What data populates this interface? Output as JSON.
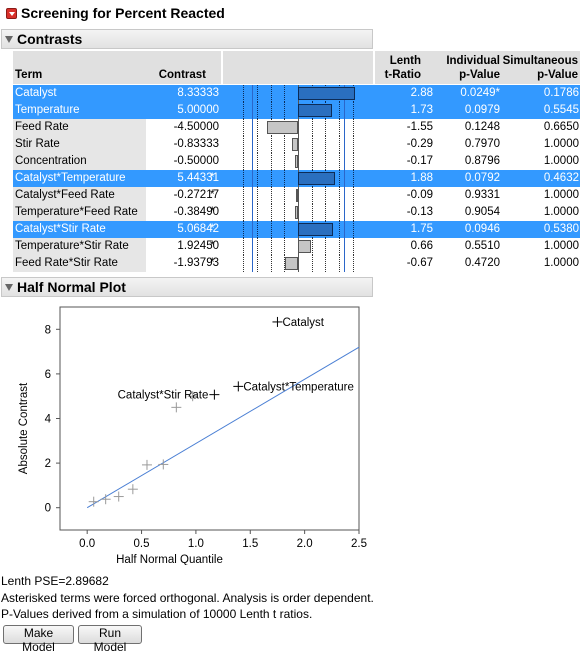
{
  "report": {
    "title": "Screening for Percent Reacted",
    "contrasts_title": "Contrasts",
    "half_normal_title": "Half Normal Plot"
  },
  "table": {
    "headers": {
      "term": "Term",
      "contrast": "Contrast",
      "lenth_l1": "Lenth",
      "lenth_l2": "t-Ratio",
      "ind_l1": "Individual",
      "ind_l2": "p-Value",
      "sim_l1": "Simultaneous",
      "sim_l2": "p-Value"
    },
    "rows": [
      {
        "term": "Catalyst",
        "contrast": "8.33333",
        "star": "",
        "t": "2.88",
        "ind": "0.0249*",
        "sim": "0.1786",
        "selected": true,
        "ind_red": true
      },
      {
        "term": "Temperature",
        "contrast": "5.00000",
        "star": "",
        "t": "1.73",
        "ind": "0.0979",
        "sim": "0.5545",
        "selected": true,
        "ind_red": false
      },
      {
        "term": "Feed Rate",
        "contrast": "-4.50000",
        "star": "",
        "t": "-1.55",
        "ind": "0.1248",
        "sim": "0.6650",
        "selected": false,
        "ind_red": false
      },
      {
        "term": "Stir Rate",
        "contrast": "-0.83333",
        "star": "",
        "t": "-0.29",
        "ind": "0.7970",
        "sim": "1.0000",
        "selected": false,
        "ind_red": false
      },
      {
        "term": "Concentration",
        "contrast": "-0.50000",
        "star": "",
        "t": "-0.17",
        "ind": "0.8796",
        "sim": "1.0000",
        "selected": false,
        "ind_red": false
      },
      {
        "term": "Catalyst*Temperature",
        "contrast": "5.44331",
        "star": "*",
        "t": "1.88",
        "ind": "0.0792",
        "sim": "0.4632",
        "selected": true,
        "ind_red": false
      },
      {
        "term": "Catalyst*Feed Rate",
        "contrast": "-0.27217",
        "star": "*",
        "t": "-0.09",
        "ind": "0.9331",
        "sim": "1.0000",
        "selected": false,
        "ind_red": false
      },
      {
        "term": "Temperature*Feed Rate",
        "contrast": "-0.38490",
        "star": "*",
        "t": "-0.13",
        "ind": "0.9054",
        "sim": "1.0000",
        "selected": false,
        "ind_red": false
      },
      {
        "term": "Catalyst*Stir Rate",
        "contrast": "5.06842",
        "star": "*",
        "t": "1.75",
        "ind": "0.0946",
        "sim": "0.5380",
        "selected": true,
        "ind_red": false
      },
      {
        "term": "Temperature*Stir Rate",
        "contrast": "1.92450",
        "star": "*",
        "t": "0.66",
        "ind": "0.5510",
        "sim": "1.0000",
        "selected": false,
        "ind_red": false
      },
      {
        "term": "Feed Rate*Stir Rate",
        "contrast": "-1.93793",
        "star": "*",
        "t": "-0.67",
        "ind": "0.4720",
        "sim": "1.0000",
        "selected": false,
        "ind_red": false
      }
    ],
    "bar_scale_max": 11
  },
  "chart_data": {
    "type": "scatter",
    "xlabel": "Half Normal Quantile",
    "ylabel": "Absolute Contrast",
    "xlim": [
      -0.25,
      2.5
    ],
    "ylim": [
      -1,
      9
    ],
    "xticks": [
      "0.0",
      "0.5",
      "1.0",
      "1.5",
      "2.0",
      "2.5"
    ],
    "xtick_values": [
      0,
      0.5,
      1.0,
      1.5,
      2.0,
      2.5
    ],
    "yticks": [
      "0",
      "2",
      "4",
      "6",
      "8"
    ],
    "ytick_values": [
      0,
      2,
      4,
      6,
      8
    ],
    "points": [
      {
        "x": 0.06,
        "y": 0.27,
        "label": ""
      },
      {
        "x": 0.17,
        "y": 0.38,
        "label": ""
      },
      {
        "x": 0.29,
        "y": 0.5,
        "label": ""
      },
      {
        "x": 0.42,
        "y": 0.83,
        "label": ""
      },
      {
        "x": 0.55,
        "y": 1.92,
        "label": ""
      },
      {
        "x": 0.7,
        "y": 1.94,
        "label": ""
      },
      {
        "x": 0.82,
        "y": 4.5,
        "label": ""
      },
      {
        "x": 0.97,
        "y": 5.0,
        "label": ""
      },
      {
        "x": 1.17,
        "y": 5.07,
        "label": "Catalyst*Stir Rate"
      },
      {
        "x": 1.39,
        "y": 5.44,
        "label": "Catalyst*Temperature"
      },
      {
        "x": 1.75,
        "y": 8.33,
        "label": "Catalyst"
      }
    ],
    "line": {
      "x": [
        0.0,
        2.5
      ],
      "y": [
        0.0,
        7.2
      ]
    },
    "line_color": "#4a7fd4",
    "point_color_labeled": "#000000",
    "point_color_unlabeled": "#9a9a9a"
  },
  "footer": {
    "lenth_pse": "Lenth PSE=2.89682",
    "note1": "Asterisked terms were forced orthogonal. Analysis is order dependent.",
    "note2": "P-Values derived from a simulation of 10000 Lenth t ratios."
  },
  "buttons": {
    "make_model": "Make Model",
    "run_model": "Run Model"
  },
  "colors": {
    "selection": "#3399ff",
    "significant": "#d4186e",
    "disclosure": "#d9302a"
  }
}
